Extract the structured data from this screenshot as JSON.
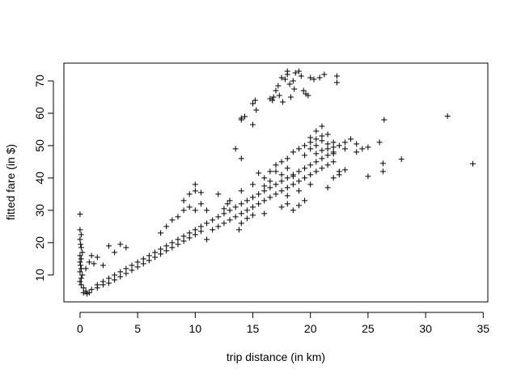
{
  "chart_data": {
    "type": "scatter",
    "marker": "+",
    "color": "#000000",
    "xlabel": "trip distance (in km)",
    "ylabel": "fitted fare (in $)",
    "xlim": [
      -1.4,
      35.4
    ],
    "ylim": [
      1.7,
      75.5
    ],
    "x_ticks": [
      0,
      5,
      10,
      15,
      20,
      25,
      30,
      35
    ],
    "y_ticks": [
      10,
      20,
      30,
      40,
      50,
      60,
      70
    ],
    "grid": false,
    "legend": "none",
    "points": [
      [
        0.0,
        28.8
      ],
      [
        0.0,
        24.0
      ],
      [
        0.1,
        22.5
      ],
      [
        0.0,
        21.0
      ],
      [
        0.05,
        19.5
      ],
      [
        0.1,
        18.5
      ],
      [
        0.2,
        17.0
      ],
      [
        0.0,
        16.0
      ],
      [
        0.1,
        15.0
      ],
      [
        0.0,
        14.0
      ],
      [
        0.05,
        13.0
      ],
      [
        0.1,
        12.0
      ],
      [
        0.0,
        11.0
      ],
      [
        0.2,
        10.0
      ],
      [
        0.1,
        9.0
      ],
      [
        0.0,
        8.0
      ],
      [
        0.1,
        7.0
      ],
      [
        0.3,
        6.0
      ],
      [
        0.5,
        5.0
      ],
      [
        0.3,
        4.5
      ],
      [
        0.6,
        4.2
      ],
      [
        0.8,
        4.5
      ],
      [
        1.0,
        5.5
      ],
      [
        1.0,
        16.0
      ],
      [
        0.8,
        14.0
      ],
      [
        0.5,
        12.0
      ],
      [
        1.5,
        15.5
      ],
      [
        1.2,
        13.5
      ],
      [
        1.5,
        7.0
      ],
      [
        2.0,
        8.0
      ],
      [
        2.5,
        9.0
      ],
      [
        3.0,
        10.0
      ],
      [
        3.5,
        11.0
      ],
      [
        4.0,
        12.0
      ],
      [
        4.5,
        13.0
      ],
      [
        5.0,
        14.0
      ],
      [
        1.5,
        6.0
      ],
      [
        2.0,
        7.0
      ],
      [
        2.5,
        7.5
      ],
      [
        3.0,
        8.5
      ],
      [
        3.5,
        9.5
      ],
      [
        4.0,
        10.5
      ],
      [
        4.5,
        11.5
      ],
      [
        5.0,
        12.5
      ],
      [
        2.5,
        19.0
      ],
      [
        3.5,
        19.5
      ],
      [
        4.0,
        18.5
      ],
      [
        3.0,
        17.0
      ],
      [
        2.0,
        13.0
      ],
      [
        5.5,
        15.0
      ],
      [
        5.5,
        13.5
      ],
      [
        6.0,
        16.0
      ],
      [
        6.0,
        14.5
      ],
      [
        6.5,
        17.0
      ],
      [
        6.5,
        15.5
      ],
      [
        7.0,
        18.0
      ],
      [
        7.0,
        16.5
      ],
      [
        7.0,
        23.0
      ],
      [
        7.5,
        19.0
      ],
      [
        7.5,
        17.5
      ],
      [
        7.5,
        25.0
      ],
      [
        8.0,
        20.0
      ],
      [
        8.0,
        18.5
      ],
      [
        8.0,
        27.0
      ],
      [
        8.5,
        21.0
      ],
      [
        8.5,
        19.5
      ],
      [
        8.5,
        28.0
      ],
      [
        9.0,
        22.0
      ],
      [
        9.0,
        20.5
      ],
      [
        9.0,
        30.0
      ],
      [
        9.0,
        33.0
      ],
      [
        9.5,
        23.0
      ],
      [
        9.5,
        21.5
      ],
      [
        9.5,
        31.0
      ],
      [
        9.5,
        35.0
      ],
      [
        10.0,
        24.0
      ],
      [
        10.0,
        22.5
      ],
      [
        10.0,
        30.0
      ],
      [
        10.0,
        36.0
      ],
      [
        10.0,
        38.0
      ],
      [
        10.5,
        25.0
      ],
      [
        10.5,
        23.5
      ],
      [
        10.5,
        32.0
      ],
      [
        10.5,
        35.5
      ],
      [
        11.0,
        26.0
      ],
      [
        11.0,
        21.0
      ],
      [
        11.0,
        30.0
      ],
      [
        11.5,
        27.0
      ],
      [
        11.5,
        24.0
      ],
      [
        12.0,
        28.0
      ],
      [
        12.0,
        25.0
      ],
      [
        12.0,
        35.0
      ],
      [
        12.5,
        29.0
      ],
      [
        12.5,
        26.0
      ],
      [
        13.0,
        30.0
      ],
      [
        13.0,
        27.0
      ],
      [
        13.0,
        33.0
      ],
      [
        13.5,
        31.0
      ],
      [
        13.5,
        28.0
      ],
      [
        14.0,
        32.0
      ],
      [
        14.0,
        29.0
      ],
      [
        14.0,
        36.0
      ],
      [
        14.5,
        33.0
      ],
      [
        14.5,
        30.0
      ],
      [
        15.0,
        34.0
      ],
      [
        15.0,
        31.0
      ],
      [
        15.0,
        38.0
      ],
      [
        15.5,
        35.0
      ],
      [
        15.5,
        32.0
      ],
      [
        16.0,
        36.0
      ],
      [
        16.0,
        33.0
      ],
      [
        16.0,
        40.0
      ],
      [
        16.5,
        37.0
      ],
      [
        16.5,
        34.0
      ],
      [
        16.5,
        42.0
      ],
      [
        17.0,
        38.0
      ],
      [
        17.0,
        35.0
      ],
      [
        17.0,
        44.0
      ],
      [
        17.5,
        39.0
      ],
      [
        17.5,
        36.0
      ],
      [
        17.5,
        45.0
      ],
      [
        18.0,
        40.0
      ],
      [
        18.0,
        37.0
      ],
      [
        18.0,
        46.0
      ],
      [
        18.5,
        41.0
      ],
      [
        18.5,
        38.0
      ],
      [
        18.5,
        48.0
      ],
      [
        19.0,
        42.0
      ],
      [
        19.0,
        39.0
      ],
      [
        19.0,
        49.0
      ],
      [
        19.5,
        43.0
      ],
      [
        19.5,
        40.0
      ],
      [
        19.5,
        50.0
      ],
      [
        20.0,
        44.0
      ],
      [
        20.0,
        41.0
      ],
      [
        20.0,
        51.0
      ],
      [
        20.5,
        45.0
      ],
      [
        20.5,
        42.0
      ],
      [
        20.5,
        52.0
      ],
      [
        21.0,
        46.0
      ],
      [
        21.0,
        43.0
      ],
      [
        21.0,
        53.0
      ],
      [
        21.5,
        47.0
      ],
      [
        21.5,
        44.0
      ],
      [
        21.5,
        49.0
      ],
      [
        22.0,
        48.0
      ],
      [
        22.0,
        45.0
      ],
      [
        22.0,
        51.0
      ],
      [
        22.5,
        50.0
      ],
      [
        22.5,
        42.0
      ],
      [
        23.0,
        51.0
      ],
      [
        23.5,
        52.0
      ],
      [
        24.0,
        50.5
      ],
      [
        24.5,
        49.0
      ],
      [
        25.0,
        49.5
      ],
      [
        23.0,
        49.0
      ],
      [
        24.0,
        48.0
      ],
      [
        25.0,
        40.5
      ],
      [
        26.0,
        51.0
      ],
      [
        26.3,
        44.5
      ],
      [
        26.3,
        42.0
      ],
      [
        26.4,
        58.0
      ],
      [
        27.9,
        45.8
      ],
      [
        31.9,
        59.1
      ],
      [
        34.1,
        44.4
      ],
      [
        21.0,
        56.0
      ],
      [
        20.5,
        54.5
      ],
      [
        21.5,
        53.5
      ],
      [
        20.0,
        52.5
      ],
      [
        21.0,
        51.5
      ],
      [
        20.5,
        50.0
      ],
      [
        21.5,
        50.5
      ],
      [
        22.0,
        49.5
      ],
      [
        20.0,
        49.0
      ],
      [
        21.0,
        48.5
      ],
      [
        20.5,
        47.5
      ],
      [
        19.5,
        47.0
      ],
      [
        22.0,
        47.5
      ],
      [
        14.0,
        58.5
      ],
      [
        14.3,
        59.0
      ],
      [
        14.0,
        58.0
      ],
      [
        15.0,
        63.0
      ],
      [
        15.2,
        64.0
      ],
      [
        15.3,
        61.0
      ],
      [
        15.0,
        56.5
      ],
      [
        16.5,
        64.5
      ],
      [
        16.8,
        65.0
      ],
      [
        17.0,
        67.0
      ],
      [
        17.2,
        68.5
      ],
      [
        17.5,
        71.0
      ],
      [
        17.8,
        70.5
      ],
      [
        18.0,
        72.0
      ],
      [
        18.2,
        69.0
      ],
      [
        18.5,
        70.0
      ],
      [
        18.7,
        72.5
      ],
      [
        19.0,
        73.0
      ],
      [
        19.2,
        71.5
      ],
      [
        19.4,
        67.0
      ],
      [
        19.6,
        66.0
      ],
      [
        19.8,
        65.5
      ],
      [
        20.0,
        71.0
      ],
      [
        20.3,
        70.5
      ],
      [
        20.8,
        71.0
      ],
      [
        21.2,
        72.0
      ],
      [
        22.3,
        71.5
      ],
      [
        22.3,
        69.5
      ],
      [
        17.3,
        65.5
      ],
      [
        17.6,
        63.5
      ],
      [
        18.3,
        65.0
      ],
      [
        18.6,
        67.5
      ],
      [
        16.7,
        64.0
      ],
      [
        18.0,
        73.0
      ],
      [
        13.5,
        49.0
      ],
      [
        14.0,
        46.0
      ],
      [
        12.8,
        32.0
      ],
      [
        12.5,
        30.5
      ],
      [
        13.8,
        24.0
      ],
      [
        14.0,
        26.0
      ],
      [
        17.5,
        31.0
      ],
      [
        18.0,
        32.0
      ],
      [
        18.5,
        30.0
      ],
      [
        19.0,
        31.5
      ],
      [
        19.5,
        33.0
      ],
      [
        18.0,
        34.5
      ],
      [
        19.0,
        36.0
      ],
      [
        18.5,
        40.5
      ],
      [
        20.0,
        38.0
      ],
      [
        21.5,
        37.0
      ],
      [
        22.0,
        40.0
      ],
      [
        22.5,
        41.0
      ],
      [
        23.0,
        42.5
      ],
      [
        17.0,
        42.0
      ],
      [
        18.0,
        43.0
      ],
      [
        17.5,
        41.0
      ],
      [
        16.5,
        39.0
      ],
      [
        16.0,
        37.5
      ],
      [
        15.5,
        41.5
      ],
      [
        16.0,
        29.0
      ],
      [
        15.0,
        28.5
      ],
      [
        14.5,
        27.5
      ]
    ]
  }
}
